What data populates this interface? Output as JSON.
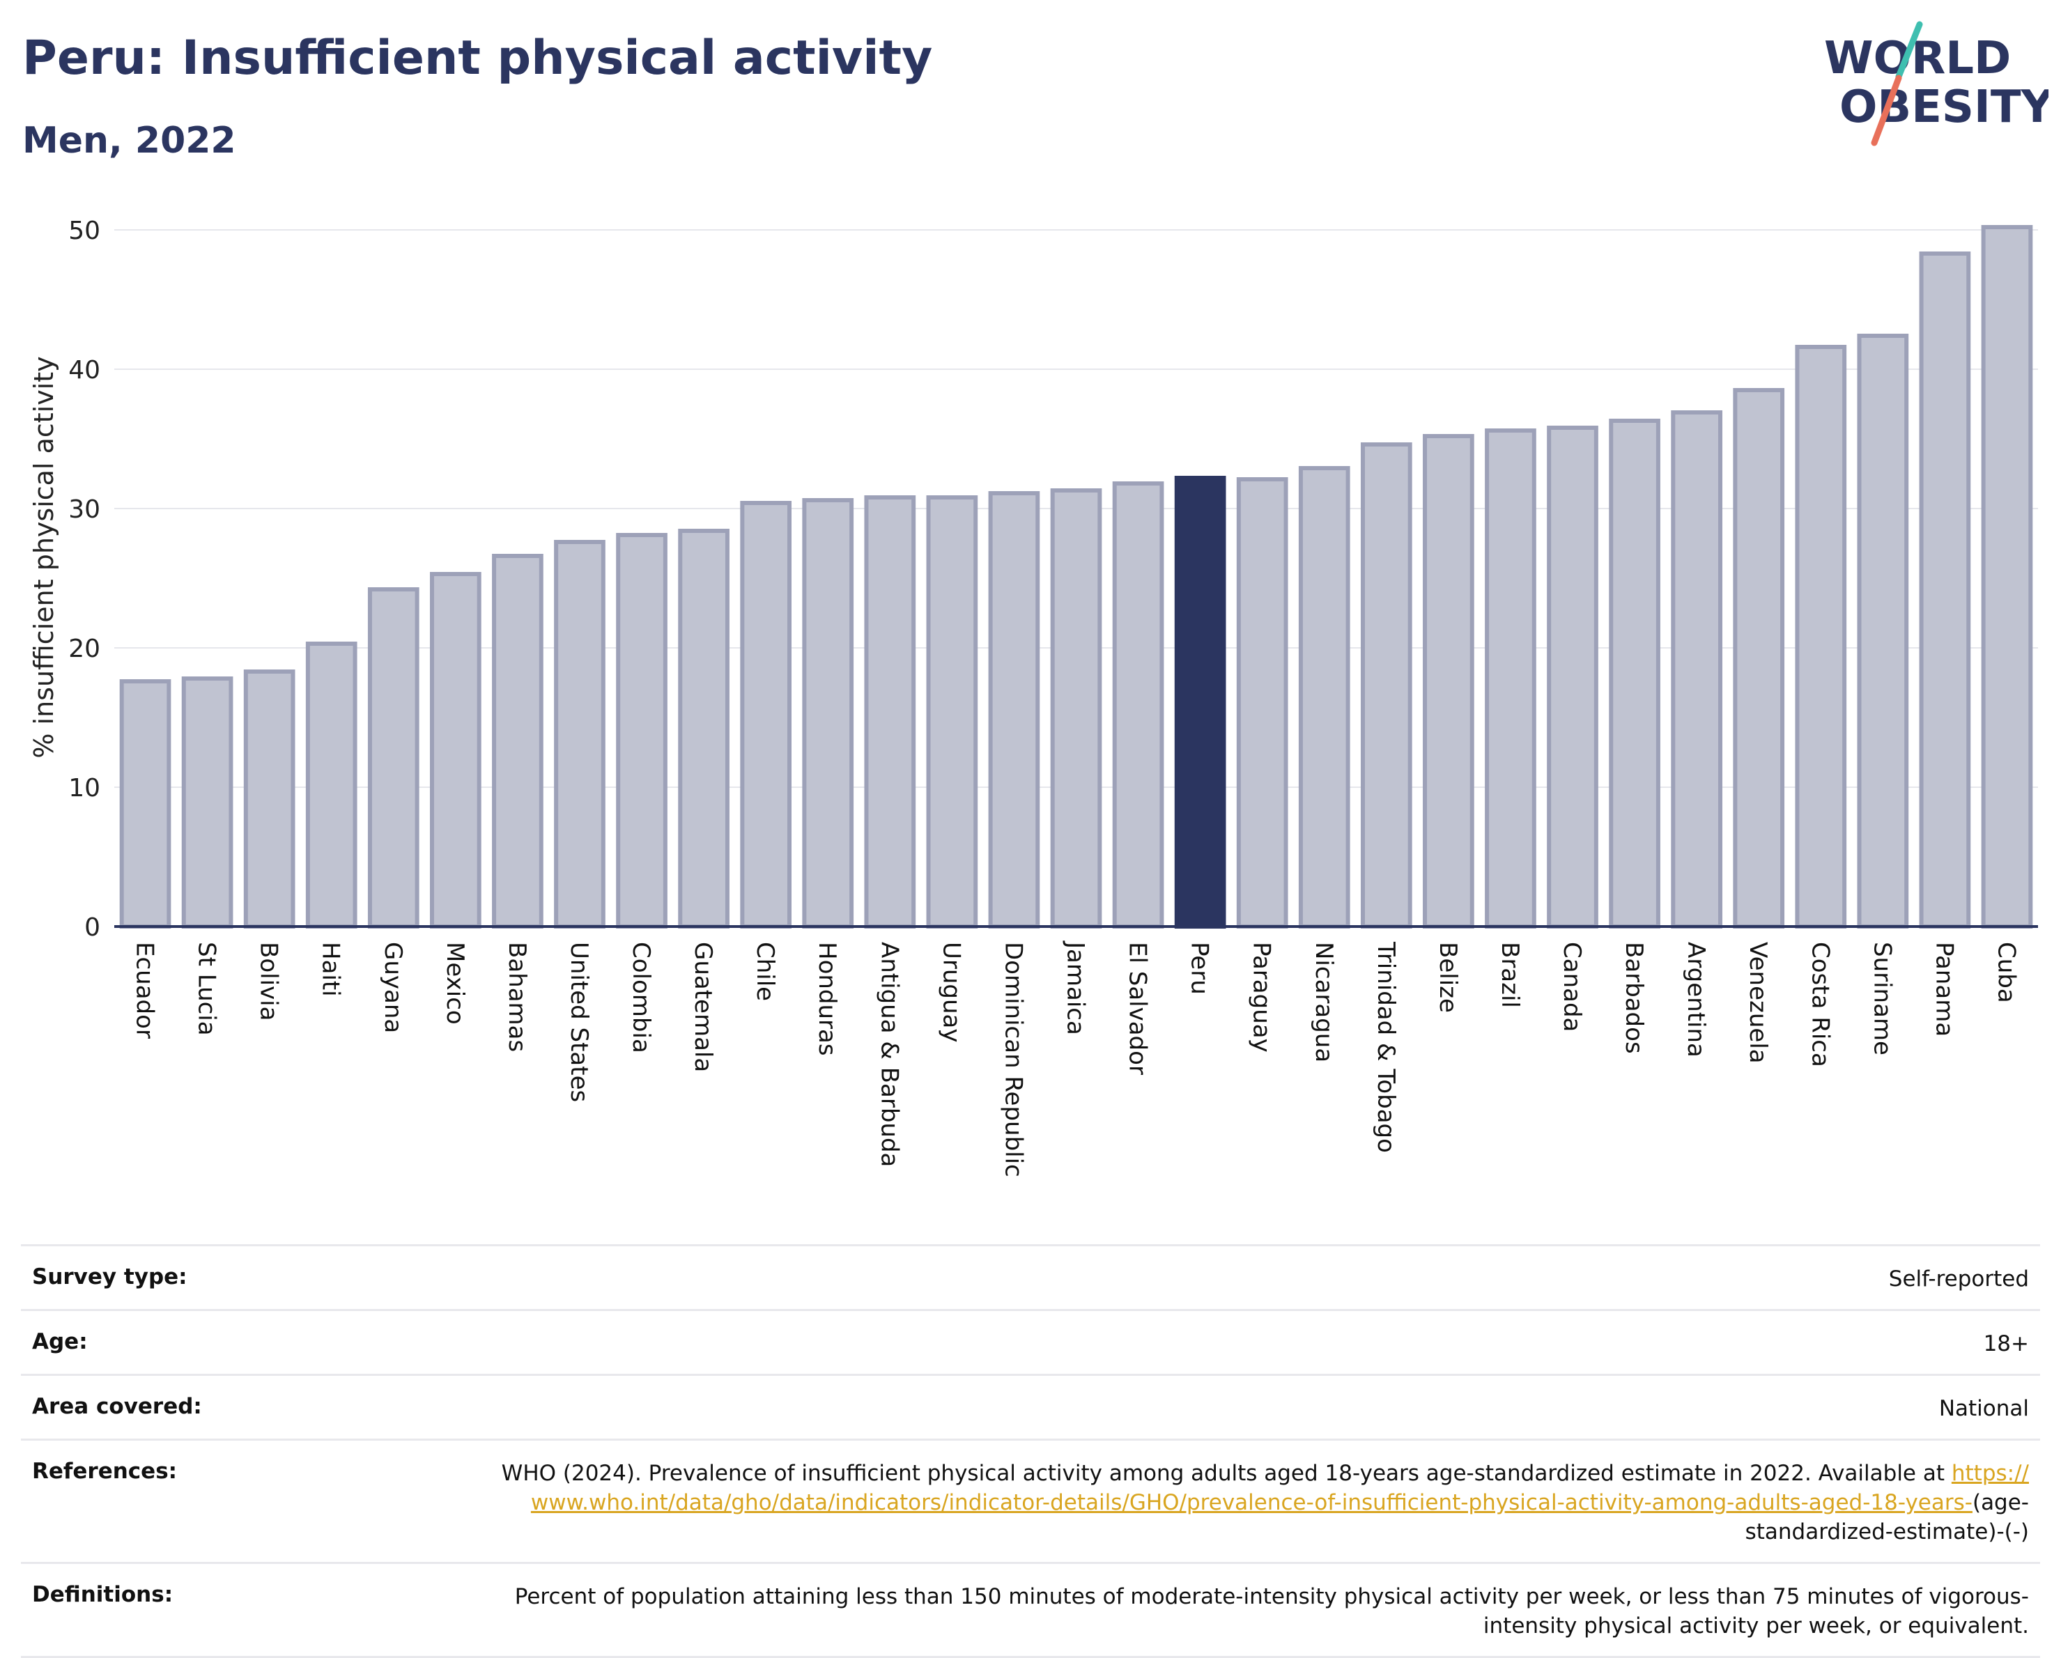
{
  "title": "Peru: Insufficient physical activity",
  "subtitle": "Men, 2022",
  "logo": {
    "line1": "WORLD",
    "line2": "OBESITY"
  },
  "colors": {
    "highlight": "#2b3560",
    "bar_fill": "#c0c3d1",
    "bar_stroke": "#9da1b8",
    "title": "#2b3560",
    "link": "#d9a520",
    "logo_teal": "#3fbfb0",
    "logo_red": "#e8705a"
  },
  "chart_data": {
    "type": "bar",
    "title": "Peru: Insufficient physical activity",
    "subtitle": "Men, 2022",
    "xlabel": "",
    "ylabel": "% insufficient physical activity",
    "ylim": [
      0,
      50
    ],
    "yticks": [
      0,
      10,
      20,
      30,
      40,
      50
    ],
    "grid": true,
    "highlight": "Peru",
    "categories": [
      "Ecuador",
      "St Lucia",
      "Bolivia",
      "Haiti",
      "Guyana",
      "Mexico",
      "Bahamas",
      "United States",
      "Colombia",
      "Guatemala",
      "Chile",
      "Honduras",
      "Antigua & Barbuda",
      "Uruguay",
      "Dominican Republic",
      "Jamaica",
      "El Salvador",
      "Peru",
      "Paraguay",
      "Nicaragua",
      "Trinidad & Tobago",
      "Belize",
      "Brazil",
      "Canada",
      "Barbados",
      "Argentina",
      "Venezuela",
      "Costa Rica",
      "Suriname",
      "Panama",
      "Cuba"
    ],
    "values": [
      17.6,
      17.8,
      18.3,
      20.3,
      24.2,
      25.3,
      26.6,
      27.6,
      28.1,
      28.4,
      30.4,
      30.6,
      30.8,
      30.8,
      31.1,
      31.3,
      31.8,
      32.2,
      32.1,
      32.9,
      34.6,
      35.2,
      35.6,
      35.8,
      36.3,
      36.9,
      38.5,
      41.6,
      42.4,
      48.3,
      50.2
    ]
  },
  "info": {
    "survey_type": {
      "label": "Survey type:",
      "value": "Self-reported"
    },
    "age": {
      "label": "Age:",
      "value": "18+"
    },
    "area": {
      "label": "Area covered:",
      "value": "National"
    },
    "references": {
      "label": "References:",
      "text": "WHO (2024). Prevalence of insufficient physical activity among adults aged 18-years age-standardized estimate in 2022. Available at",
      "link": "https://www.who.int/data/gho/data/indicators/indicator-details/GHO/prevalence-of-insufficient-physical-activity-among-adults-aged-18-years-",
      "suffix": "(age-standardized-estimate)-(-)"
    },
    "definitions": {
      "label": "Definitions:",
      "value": "Percent of population attaining less than 150 minutes of moderate-intensity physical activity per week, or less than 75 minutes of vigorous-intensity physical activity per week, or equivalent."
    }
  }
}
